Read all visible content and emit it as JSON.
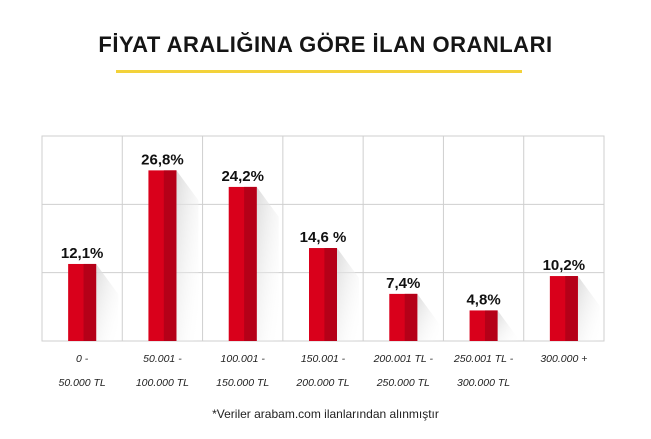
{
  "header": {
    "title": "FİYAT ARALIĞINA GÖRE İLAN ORANLARI"
  },
  "footnote": "*Veriler arabam.com ilanlarından alınmıştır",
  "colors": {
    "bar": "#d9001b",
    "bar_dark": "#b50018",
    "accent_underline": "#f3d23a",
    "grid": "#cfcfcf"
  },
  "chart_data": {
    "type": "bar",
    "categories": [
      [
        "0 -",
        "50.000 TL"
      ],
      [
        "50.001 -",
        "100.000 TL"
      ],
      [
        "100.001 -",
        "150.000 TL"
      ],
      [
        "150.001 -",
        "200.000 TL"
      ],
      [
        "200.001 TL -",
        "250.000 TL"
      ],
      [
        "250.001 TL -",
        "300.000 TL"
      ],
      [
        "300.000 +"
      ]
    ],
    "values": [
      12.1,
      26.8,
      24.2,
      14.6,
      7.4,
      4.8,
      10.2
    ],
    "value_labels": [
      "12,1%",
      "26,8%",
      "24,2%",
      "14,6 %",
      "7,4%",
      "4,8%",
      "10,2%"
    ],
    "ylim": [
      0,
      30
    ],
    "grid": true
  }
}
